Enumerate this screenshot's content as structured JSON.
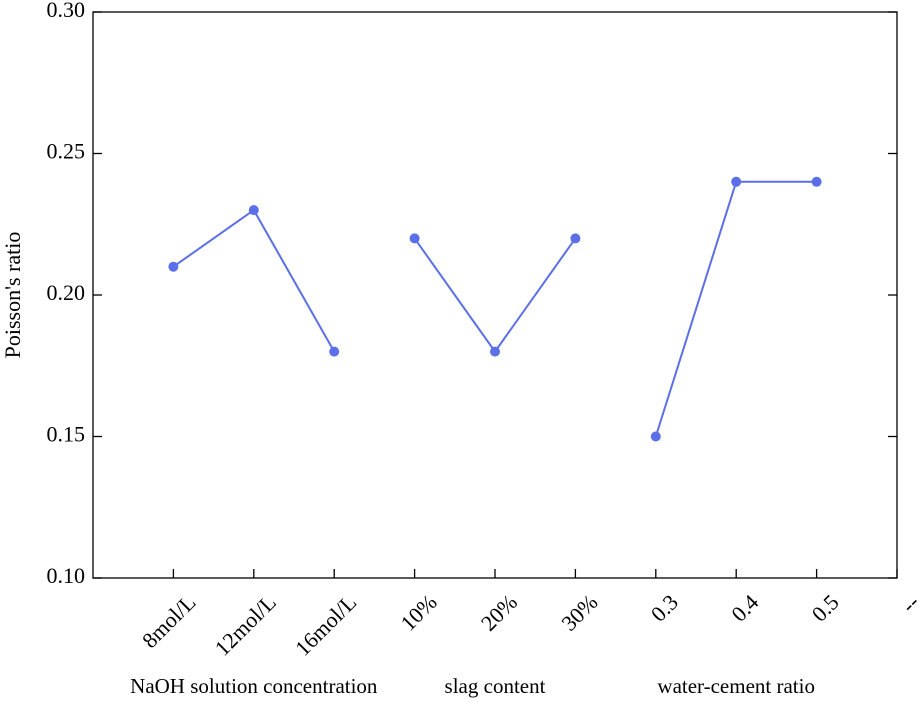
{
  "chart_data": {
    "type": "line",
    "y_label": "Poisson's ratio",
    "categories": [
      "8mol/L",
      "12mol/L",
      "16mol/L",
      "10%",
      "20%",
      "30%",
      "0.3",
      "0.4",
      "0.5",
      "--"
    ],
    "series": [
      {
        "name": "NaOH solution concentration",
        "color": "#5b6fe8",
        "values": [
          0.21,
          0.23,
          0.18,
          null,
          null,
          null,
          null,
          null,
          null,
          null
        ]
      },
      {
        "name": "slag content",
        "color": "#5b6fe8",
        "values": [
          null,
          null,
          null,
          0.22,
          0.18,
          0.22,
          null,
          null,
          null,
          null
        ]
      },
      {
        "name": "water-cement ratio",
        "color": "#5b6fe8",
        "values": [
          null,
          null,
          null,
          null,
          null,
          null,
          0.15,
          0.24,
          0.24,
          null
        ]
      }
    ],
    "ylim": [
      0.1,
      0.3
    ],
    "yticks": [
      {
        "value": 0.1,
        "label": "0.10"
      },
      {
        "value": 0.15,
        "label": "0.15"
      },
      {
        "value": 0.2,
        "label": "0.20"
      },
      {
        "value": 0.25,
        "label": "0.25"
      },
      {
        "value": 0.3,
        "label": "0.30"
      }
    ]
  }
}
